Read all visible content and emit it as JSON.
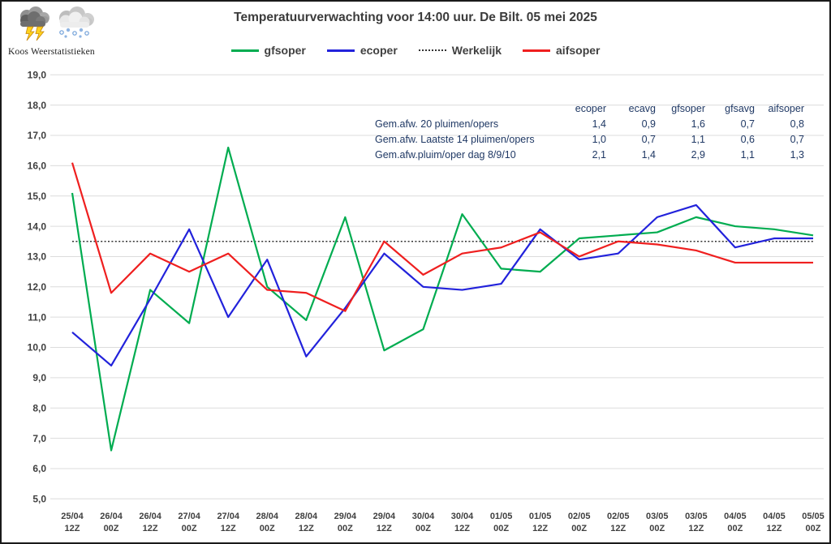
{
  "branding": {
    "name": "Koos Weerstatistieken",
    "icons": [
      "storm-cloud-icon",
      "snow-cloud-icon"
    ]
  },
  "title": "Temperatuurverwachting voor 14:00 uur. De Bilt. 05 mei 2025",
  "colors": {
    "gfsoper": "#00ac50",
    "ecoper": "#2222db",
    "werkelijk": "#333333",
    "aifsoper": "#ef1f1f",
    "grid": "#dcdcdc",
    "axis_text": "#3f3f3f",
    "table_text": "#1f3864",
    "title_text": "#3b3b3b"
  },
  "chart_data": {
    "type": "line",
    "title": "Temperatuurverwachting voor 14:00 uur. De Bilt. 05 mei 2025",
    "xlabel": "",
    "ylabel": "",
    "ylim": [
      5.0,
      19.0
    ],
    "y_tick_step": 1.0,
    "tick_format": "comma-decimal",
    "grid": "horizontal-only",
    "legend_position": "top-center",
    "categories": [
      "25/04 12Z",
      "26/04 00Z",
      "26/04 12Z",
      "27/04 00Z",
      "27/04 12Z",
      "28/04 00Z",
      "28/04 12Z",
      "29/04 00Z",
      "29/04 12Z",
      "30/04 00Z",
      "30/04 12Z",
      "01/05 00Z",
      "01/05 12Z",
      "02/05 00Z",
      "02/05 12Z",
      "03/05 00Z",
      "03/05 12Z",
      "04/05 00Z",
      "04/05 12Z",
      "05/05 00Z"
    ],
    "series": [
      {
        "name": "gfsoper",
        "color": "#00ac50",
        "dash": null,
        "values": [
          15.1,
          6.6,
          11.9,
          10.8,
          16.6,
          12.0,
          10.9,
          14.3,
          9.9,
          10.6,
          14.4,
          12.6,
          12.5,
          13.6,
          13.7,
          13.8,
          14.3,
          14.0,
          13.9,
          13.7
        ]
      },
      {
        "name": "ecoper",
        "color": "#2222db",
        "dash": null,
        "values": [
          10.5,
          9.4,
          11.6,
          13.9,
          11.0,
          12.9,
          9.7,
          11.3,
          13.1,
          12.0,
          11.9,
          12.1,
          13.9,
          12.9,
          13.1,
          14.3,
          14.7,
          13.3,
          13.6,
          13.6
        ]
      },
      {
        "name": "Werkelijk",
        "color": "#333333",
        "dash": "dotted",
        "values": [
          13.5,
          13.5,
          13.5,
          13.5,
          13.5,
          13.5,
          13.5,
          13.5,
          13.5,
          13.5,
          13.5,
          13.5,
          13.5,
          13.5,
          13.5,
          13.5,
          13.5,
          13.5,
          13.5,
          13.5
        ]
      },
      {
        "name": "aifsoper",
        "color": "#ef1f1f",
        "dash": null,
        "values": [
          16.1,
          11.8,
          13.1,
          12.5,
          13.1,
          11.9,
          11.8,
          11.2,
          13.5,
          12.4,
          13.1,
          13.3,
          13.8,
          13.0,
          13.5,
          13.4,
          13.2,
          12.8,
          12.8,
          12.8
        ]
      }
    ]
  },
  "stats_table": {
    "headers": [
      "ecoper",
      "ecavg",
      "gfsoper",
      "gfsavg",
      "aifsoper"
    ],
    "rows": [
      {
        "label": "Gem.afw. 20 pluimen/opers",
        "values": [
          "1,4",
          "0,9",
          "1,6",
          "0,7",
          "0,8"
        ]
      },
      {
        "label": "Gem.afw. Laatste 14 pluimen/opers",
        "values": [
          "1,0",
          "0,7",
          "1,1",
          "0,6",
          "0,7"
        ]
      },
      {
        "label": "Gem.afw.pluim/oper dag 8/9/10",
        "values": [
          "2,1",
          "1,4",
          "2,9",
          "1,1",
          "1,3"
        ]
      }
    ]
  }
}
